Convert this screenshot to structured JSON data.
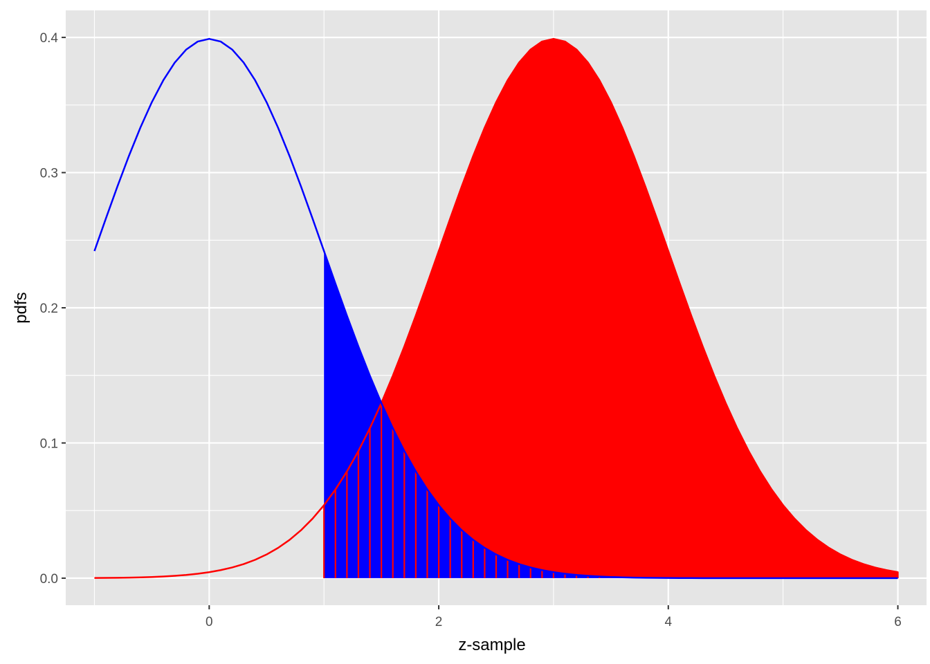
{
  "chart_data": {
    "type": "area",
    "xlabel": "z-sample",
    "ylabel": "pdfs",
    "xlim": [
      -1.25,
      6.25
    ],
    "ylim": [
      -0.02,
      0.42
    ],
    "x_ticks": [
      0,
      2,
      4,
      6
    ],
    "x_tick_labels": [
      "0",
      "2",
      "4",
      "6"
    ],
    "y_ticks": [
      0.0,
      0.1,
      0.2,
      0.3,
      0.4
    ],
    "y_tick_labels": [
      "0.0",
      "0.1",
      "0.2",
      "0.3",
      "0.4"
    ],
    "grid": true,
    "x_range": [
      -1,
      6
    ],
    "x_step": 0.1,
    "shade_from": 1,
    "series": [
      {
        "distribution": "normal",
        "mean": 0,
        "sd": 1,
        "color": "#0000ff",
        "fill": "#0000ff",
        "fill_region": "x >= 1"
      },
      {
        "distribution": "normal",
        "mean": 3,
        "sd": 1,
        "color": "#ff0000",
        "fill": "#ff0000",
        "fill_region": "x >= 1, drawn as vertical segments at each sample"
      }
    ],
    "plot_background": "#e5e5e5",
    "gridline_color": "#ffffff"
  }
}
